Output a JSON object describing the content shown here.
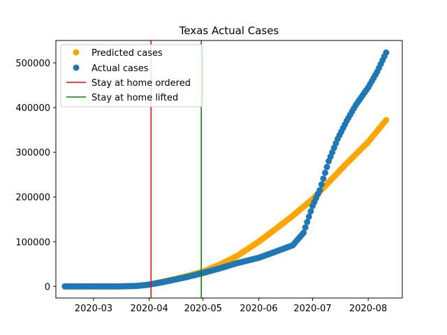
{
  "chart_data": {
    "type": "scatter",
    "title": "Texas Actual Cases",
    "xlabel": "",
    "ylabel": "",
    "x_axis_type": "date",
    "xlim": [
      "2020-02-09",
      "2020-08-20"
    ],
    "ylim": [
      -26000,
      550000
    ],
    "x_tick_labels": [
      "2020-03",
      "2020-04",
      "2020-05",
      "2020-06",
      "2020-07",
      "2020-08"
    ],
    "x_tick_dates": [
      "2020-03-01",
      "2020-04-01",
      "2020-05-01",
      "2020-06-01",
      "2020-07-01",
      "2020-08-01"
    ],
    "y_ticks": [
      0,
      100000,
      200000,
      300000,
      400000,
      500000
    ],
    "y_tick_labels": [
      "0",
      "100000",
      "200000",
      "300000",
      "400000",
      "500000"
    ],
    "grid": false,
    "legend": {
      "position": "upper-left",
      "entries": [
        {
          "label": "Predicted cases",
          "marker": "circle",
          "color": "#ffa500"
        },
        {
          "label": "Actual cases",
          "marker": "circle",
          "color": "#1f77b4"
        },
        {
          "label": "Stay at home ordered",
          "marker": "line",
          "color": "#ff0000"
        },
        {
          "label": "Stay at home lifted",
          "marker": "line",
          "color": "#008000"
        }
      ]
    },
    "vlines": [
      {
        "label": "Stay at home ordered",
        "date": "2020-04-02",
        "color": "#ff0000"
      },
      {
        "label": "Stay at home lifted",
        "date": "2020-04-30",
        "color": "#008000"
      }
    ],
    "series": [
      {
        "name": "Predicted cases",
        "color": "#ffa500",
        "marker": "circle",
        "x": [
          "2020-02-14",
          "2020-03-01",
          "2020-03-15",
          "2020-03-25",
          "2020-04-01",
          "2020-04-08",
          "2020-04-15",
          "2020-04-22",
          "2020-05-01",
          "2020-05-10",
          "2020-05-20",
          "2020-06-01",
          "2020-06-10",
          "2020-06-20",
          "2020-07-01",
          "2020-07-10",
          "2020-07-20",
          "2020-08-01",
          "2020-08-11"
        ],
        "y": [
          0,
          0,
          0,
          1000,
          4000,
          10000,
          16000,
          23000,
          33000,
          48000,
          68000,
          100000,
          127000,
          158000,
          195000,
          233000,
          275000,
          323000,
          372000
        ]
      },
      {
        "name": "Actual cases",
        "color": "#1f77b4",
        "marker": "circle",
        "x": [
          "2020-02-14",
          "2020-03-01",
          "2020-03-15",
          "2020-03-25",
          "2020-04-01",
          "2020-04-08",
          "2020-04-15",
          "2020-04-22",
          "2020-05-01",
          "2020-05-10",
          "2020-05-20",
          "2020-06-01",
          "2020-06-10",
          "2020-06-20",
          "2020-06-26",
          "2020-07-01",
          "2020-07-05",
          "2020-07-10",
          "2020-07-15",
          "2020-07-20",
          "2020-07-25",
          "2020-08-01",
          "2020-08-06",
          "2020-08-11"
        ],
        "y": [
          0,
          0,
          0,
          1000,
          4000,
          9000,
          15000,
          21000,
          30000,
          40000,
          52000,
          64000,
          77000,
          92000,
          120000,
          180000,
          215000,
          280000,
          330000,
          370000,
          405000,
          445000,
          480000,
          523000
        ]
      }
    ]
  }
}
